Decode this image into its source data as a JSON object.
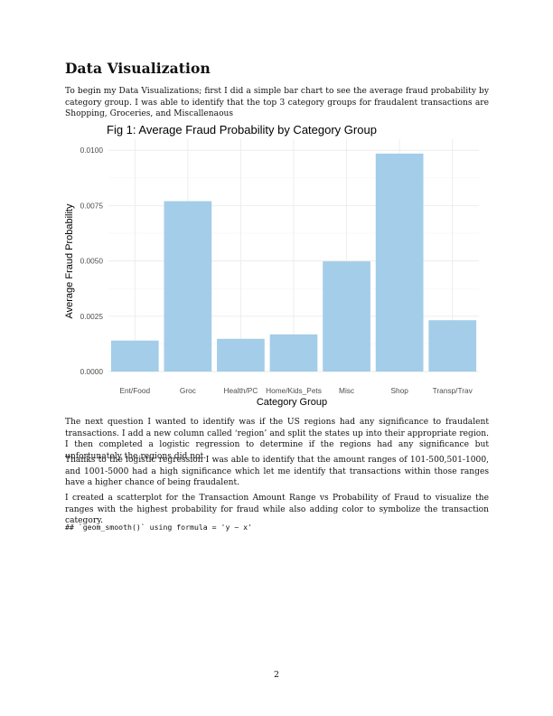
{
  "section": {
    "heading": "Data Visualization"
  },
  "paragraphs": [
    "To begin my Data Visualizations; first I did a simple bar chart to see the average fraud probability by category group. I was able to identify that the top 3 category groups for fraudalent transactions are Shopping, Groceries, and Miscallenaous",
    "The next question I wanted to identify was if the US regions had any significance to fraudalent transactions. I add a new column called ‘region’ and split the states up into their appropriate region. I then completed a logistic regression to determine if the regions had any significance but unfortunately the regions did not.",
    "Thanks to the logistic regression I was able to identify that the amount ranges of 101-500,501-1000, and 1001-5000 had a high significance which let me identify that transactions within those ranges have a higher chance of being fraudalent.",
    "I created a scatterplot for the Transaction Amount Range vs Probability of Fraud to visualize the ranges with the highest probability for fraud while also adding color to symbolize the transaction category."
  ],
  "code_output": "## `geom_smooth()` using formula = 'y ~ x'",
  "page_number": "2",
  "chart_data": {
    "type": "bar",
    "title": "Fig 1: Average Fraud Probability by Category Group",
    "xlabel": "Category Group",
    "ylabel": "Average Fraud Probability",
    "categories": [
      "Ent/Food",
      "Groc",
      "Health/PC",
      "Home/Kids_Pets",
      "Misc",
      "Shop",
      "Transp/Trav"
    ],
    "values": [
      0.0014,
      0.0077,
      0.00148,
      0.00168,
      0.00498,
      0.00985,
      0.00232
    ],
    "ylim": [
      0,
      0.0105
    ],
    "yticks": [
      "0.0000",
      "0.0025",
      "0.0050",
      "0.0075",
      "0.0100"
    ],
    "ytick_values": [
      0,
      0.0025,
      0.005,
      0.0075,
      0.01
    ],
    "bar_color": "#a3cde8",
    "grid": true,
    "legend": "none"
  }
}
